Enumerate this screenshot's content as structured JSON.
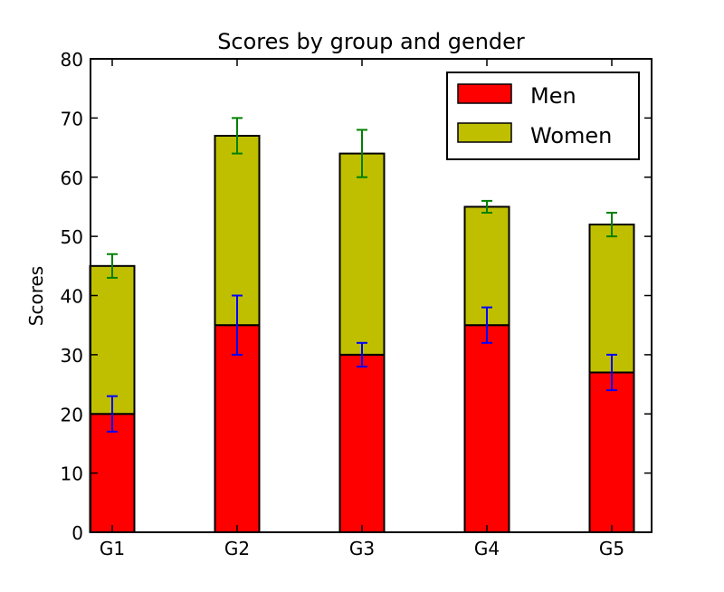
{
  "chart_data": {
    "type": "bar",
    "stacked": true,
    "title": "Scores by group and gender",
    "xlabel": "",
    "ylabel": "Scores",
    "categories": [
      "G1",
      "G2",
      "G3",
      "G4",
      "G5"
    ],
    "series": [
      {
        "name": "Men",
        "color": "#ff0000",
        "values": [
          20,
          35,
          30,
          35,
          27
        ],
        "errors": [
          3,
          5,
          2,
          3,
          3
        ],
        "error_color": "#0000ff"
      },
      {
        "name": "Women",
        "color": "#bfbf00",
        "values": [
          25,
          32,
          34,
          20,
          25
        ],
        "errors": [
          2,
          3,
          4,
          1,
          2
        ],
        "error_color": "#008000"
      }
    ],
    "ylim": [
      0,
      80
    ],
    "yticks": [
      0,
      10,
      20,
      30,
      40,
      50,
      60,
      70,
      80
    ],
    "grid": false,
    "legend_position": "upper right"
  }
}
